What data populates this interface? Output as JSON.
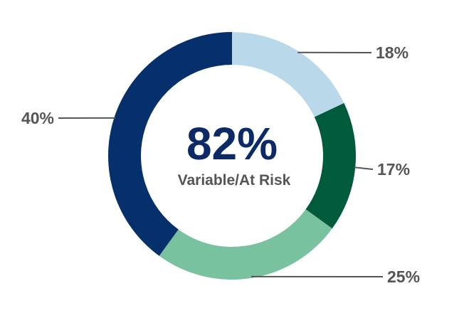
{
  "chart_data": {
    "type": "pie",
    "subtype": "donut",
    "center": {
      "value": "82%",
      "caption": "Variable/At Risk"
    },
    "slices": [
      {
        "value": 18,
        "label": "18%",
        "color": "#b9d9ea"
      },
      {
        "value": 17,
        "label": "17%",
        "color": "#005a3c"
      },
      {
        "value": 25,
        "label": "25%",
        "color": "#78c2a0"
      },
      {
        "value": 40,
        "label": "40%",
        "color": "#05306b"
      }
    ],
    "start_angle": "12 o'clock",
    "direction": "clockwise",
    "legend": "none"
  }
}
